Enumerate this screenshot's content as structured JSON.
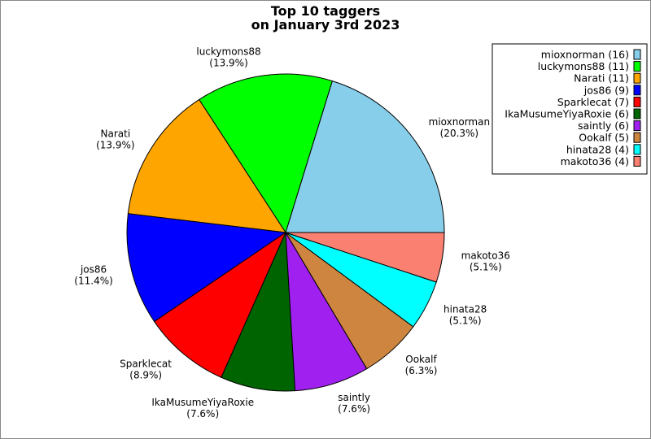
{
  "chart_data": {
    "type": "pie",
    "title": [
      "Top 10 taggers",
      "on January 3rd 2023"
    ],
    "start_angle_deg": 0,
    "direction": "counterclockwise",
    "legend_placement": "top-right",
    "slices": [
      {
        "label": "mioxnorman",
        "value": 16,
        "pct": "20.3%",
        "legend": "mioxnorman (16)",
        "color": "#87CEEB"
      },
      {
        "label": "luckymons88",
        "value": 11,
        "pct": "13.9%",
        "legend": "luckymons88 (11)",
        "color": "#00FF00"
      },
      {
        "label": "Narati",
        "value": 11,
        "pct": "13.9%",
        "legend": "Narati (11)",
        "color": "#FFA500"
      },
      {
        "label": "jos86",
        "value": 9,
        "pct": "11.4%",
        "legend": "jos86 (9)",
        "color": "#0000FF"
      },
      {
        "label": "Sparklecat",
        "value": 7,
        "pct": "8.9%",
        "legend": "Sparklecat (7)",
        "color": "#FF0000"
      },
      {
        "label": "IkaMusumeYiyaRoxie",
        "value": 6,
        "pct": "7.6%",
        "legend": "IkaMusumeYiyaRoxie (6)",
        "color": "#006400"
      },
      {
        "label": "saintly",
        "value": 6,
        "pct": "7.6%",
        "legend": "saintly (6)",
        "color": "#A020F0"
      },
      {
        "label": "Ookalf",
        "value": 5,
        "pct": "6.3%",
        "legend": "Ookalf (5)",
        "color": "#CD853F"
      },
      {
        "label": "hinata28",
        "value": 4,
        "pct": "5.1%",
        "legend": "hinata28 (4)",
        "color": "#00FFFF"
      },
      {
        "label": "makoto36",
        "value": 4,
        "pct": "5.1%",
        "legend": "makoto36 (4)",
        "color": "#FA8072"
      }
    ]
  }
}
